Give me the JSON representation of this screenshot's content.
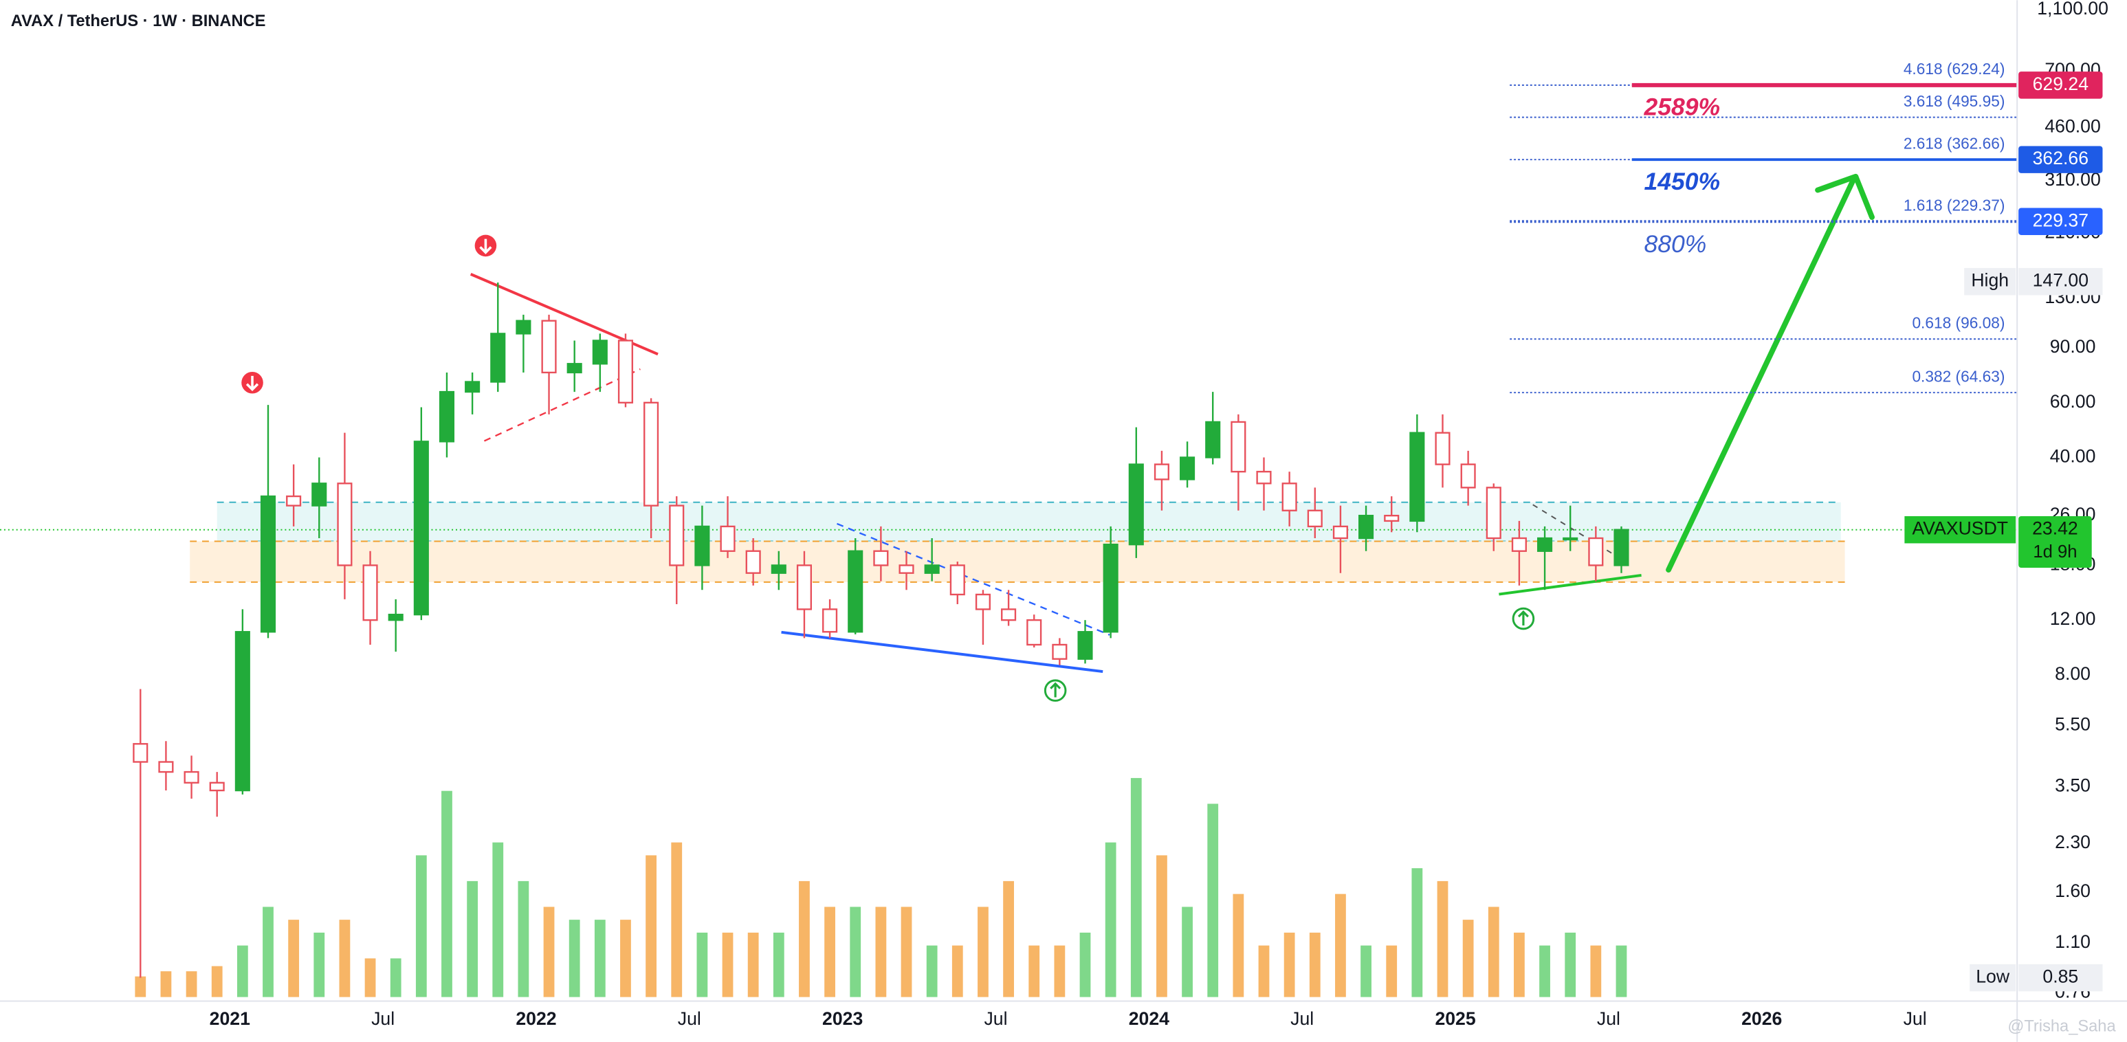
{
  "header": {
    "symbol": "AVAX / TetherUS · 1W · BINANCE"
  },
  "chart_data": {
    "type": "candlestick",
    "x": [
      "2020-09",
      "2020-10",
      "2020-11",
      "2020-12",
      "2021-01",
      "2021-02",
      "2021-03",
      "2021-04",
      "2021-05",
      "2021-06",
      "2021-07",
      "2021-08",
      "2021-09",
      "2021-10",
      "2021-11",
      "2021-12",
      "2022-01",
      "2022-02",
      "2022-03",
      "2022-04",
      "2022-05",
      "2022-06",
      "2022-07",
      "2022-08",
      "2022-09",
      "2022-10",
      "2022-11",
      "2022-12",
      "2023-01",
      "2023-02",
      "2023-03",
      "2023-04",
      "2023-05",
      "2023-06",
      "2023-07",
      "2023-08",
      "2023-09",
      "2023-10",
      "2023-11",
      "2023-12",
      "2024-01",
      "2024-02",
      "2024-03",
      "2024-04",
      "2024-05",
      "2024-06",
      "2024-07",
      "2024-08",
      "2024-09",
      "2024-10",
      "2024-11",
      "2024-12",
      "2025-01",
      "2025-02",
      "2025-03",
      "2025-04",
      "2025-05",
      "2025-06",
      "2025-07"
    ],
    "open": [
      4.8,
      4.2,
      3.9,
      3.6,
      3.4,
      11,
      30,
      28,
      33,
      18,
      12,
      12.5,
      45,
      65,
      70,
      100,
      110,
      75,
      80,
      95,
      60,
      28,
      18,
      24,
      20,
      17,
      18,
      13,
      11,
      20,
      18,
      17,
      18,
      14.5,
      13,
      12,
      10,
      9,
      11,
      21,
      38,
      34,
      40,
      52,
      36,
      33,
      27,
      24,
      22,
      26,
      25,
      48,
      38,
      32,
      22,
      20,
      22,
      22,
      18
    ],
    "high": [
      7.2,
      4.9,
      4.4,
      3.9,
      13,
      59,
      38,
      40,
      48,
      20,
      14,
      58,
      75,
      75,
      146,
      115,
      115,
      95,
      100,
      100,
      62,
      30,
      28,
      30,
      22,
      20,
      20,
      14,
      22,
      24,
      20,
      22,
      18.5,
      15,
      15,
      12.5,
      10.5,
      12,
      24,
      50,
      42,
      45,
      65,
      55,
      40,
      36,
      32,
      28,
      28,
      30,
      55,
      55,
      42,
      33,
      25,
      24,
      28,
      24,
      24
    ],
    "low": [
      0.85,
      3.4,
      3.2,
      2.8,
      3.3,
      10.5,
      24,
      22,
      14,
      10,
      9.5,
      12,
      40,
      55,
      65,
      75,
      55,
      65,
      65,
      58,
      22,
      13.5,
      15,
      19,
      15.5,
      15,
      10.5,
      10.5,
      10.8,
      16,
      15,
      16,
      13.5,
      10,
      11.5,
      9.8,
      8.6,
      8.7,
      10.5,
      19,
      27,
      32,
      38,
      27,
      27,
      24,
      22,
      17,
      20,
      23,
      23,
      32,
      28,
      20,
      15.5,
      15,
      20,
      16,
      17
    ],
    "close": [
      4.2,
      3.9,
      3.6,
      3.4,
      11,
      30,
      28,
      33,
      18,
      12,
      12.5,
      45,
      65,
      70,
      100,
      110,
      75,
      80,
      95,
      60,
      28,
      18,
      24,
      20,
      17,
      18,
      13,
      11,
      20,
      18,
      17,
      18,
      14.5,
      13,
      12,
      10,
      9,
      11,
      21,
      38,
      34,
      40,
      52,
      36,
      33,
      27,
      24,
      22,
      26,
      25,
      48,
      38,
      32,
      22,
      20,
      22,
      22,
      18,
      23.42
    ],
    "volume": [
      8,
      10,
      10,
      12,
      20,
      35,
      30,
      25,
      30,
      15,
      15,
      55,
      80,
      45,
      60,
      45,
      35,
      30,
      30,
      30,
      55,
      60,
      25,
      25,
      25,
      25,
      45,
      35,
      35,
      35,
      35,
      20,
      20,
      35,
      45,
      20,
      20,
      25,
      60,
      85,
      55,
      35,
      75,
      40,
      20,
      25,
      25,
      40,
      20,
      20,
      50,
      45,
      30,
      35,
      25,
      20,
      25,
      20,
      20
    ],
    "volume_lim": [
      0,
      100
    ],
    "up_color": "#22ab3a",
    "down_color": "#e8505b",
    "up_volume_color": "#7fd88a",
    "down_volume_color": "#f7b566",
    "xlim": [
      "2020-04",
      "2026-11"
    ],
    "xticks": [
      {
        "value": "2021-01",
        "label": "2021"
      },
      {
        "value": "2021-07",
        "label": "Jul"
      },
      {
        "value": "2022-01",
        "label": "2022"
      },
      {
        "value": "2022-07",
        "label": "Jul"
      },
      {
        "value": "2023-01",
        "label": "2023"
      },
      {
        "value": "2023-07",
        "label": "Jul"
      },
      {
        "value": "2024-01",
        "label": "2024"
      },
      {
        "value": "2024-07",
        "label": "Jul"
      },
      {
        "value": "2025-01",
        "label": "2025"
      },
      {
        "value": "2025-07",
        "label": "Jul"
      },
      {
        "value": "2026-01",
        "label": "2026"
      },
      {
        "value": "2026-07",
        "label": "Jul"
      }
    ],
    "ylim": [
      0.715,
      1180
    ],
    "log_scale": true,
    "grid": false,
    "yticks": [
      0.76,
      {
        "value": 1.1,
        "label": "1.10"
      },
      {
        "value": 1.6,
        "label": "1.60"
      },
      {
        "value": 2.3,
        "label": "2.30"
      },
      {
        "value": 3.5,
        "label": "3.50"
      },
      {
        "value": 5.5,
        "label": "5.50"
      },
      {
        "value": 8,
        "label": "8.00"
      },
      {
        "value": 12,
        "label": "12.00"
      },
      {
        "value": 18,
        "label": "18.00"
      },
      {
        "value": 26,
        "label": "26.00"
      },
      {
        "value": 40,
        "label": "40.00"
      },
      {
        "value": 60,
        "label": "60.00"
      },
      {
        "value": 90,
        "label": "90.00"
      },
      {
        "value": 130,
        "label": "130.00"
      },
      {
        "value": 210,
        "label": "210.00"
      },
      {
        "value": 310,
        "label": "310.00"
      },
      {
        "value": 460,
        "label": "460.00"
      },
      {
        "value": 700,
        "label": "700.00"
      },
      {
        "value": 1100,
        "label": "1,100.00"
      }
    ],
    "fib_levels": [
      {
        "label": "4.618 (629.24)",
        "value": 629.24,
        "tag_color": "#e0245e"
      },
      {
        "label": "3.618 (495.95)",
        "value": 495.95
      },
      {
        "label": "2.618 (362.66)",
        "value": 362.66,
        "tag_color": "#1e5be6"
      },
      {
        "label": "1.618 (229.37)",
        "value": 229.37,
        "tag_color": "#2962ff"
      },
      {
        "label": "0.618 (96.08)",
        "value": 96.08
      },
      {
        "label": "0.382 (64.63)",
        "value": 64.63
      }
    ],
    "zones": [
      {
        "from": 21.5,
        "to": 28.7,
        "color": "#e6f7f7",
        "line_color": "#3bb3c3"
      },
      {
        "from": 15.9,
        "to": 21.5,
        "color": "#fff0dc",
        "line_color": "#f0a030"
      }
    ],
    "current": {
      "name": "AVAXUSDT",
      "value": 23.42,
      "countdown": "1d 9h",
      "color": "#22c52e"
    },
    "high_marker": {
      "name": "High",
      "value": 147,
      "label": "147.00"
    },
    "low_marker": {
      "name": "Low",
      "value": 0.85
    },
    "annotations": [
      {
        "text": "2589%",
        "color": "#e0245e"
      },
      {
        "text": "1450%",
        "color": "#1e4fd6"
      },
      {
        "text": "880%",
        "color": "#3a5fcd"
      }
    ],
    "watermark": "@Trisha_Saha"
  }
}
